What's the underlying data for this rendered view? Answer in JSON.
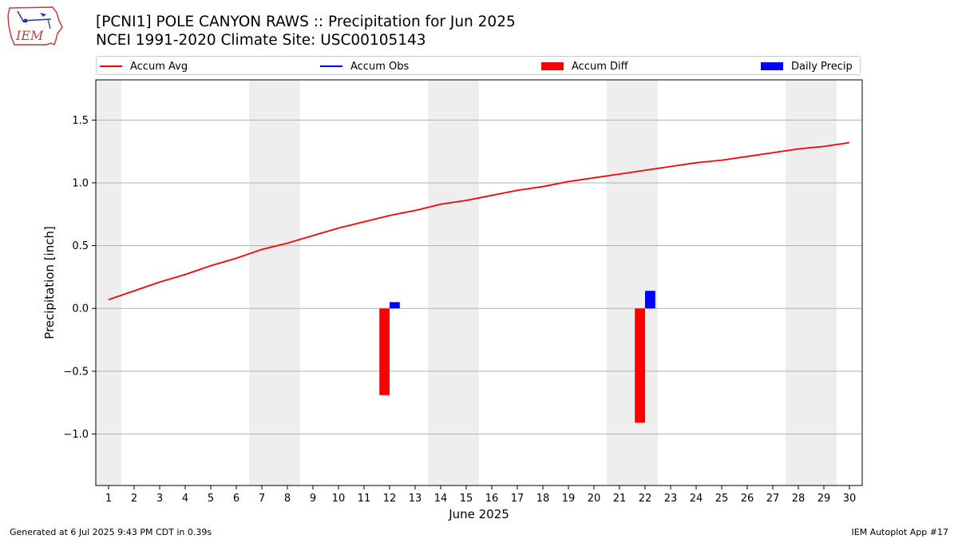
{
  "header": {
    "title_line1": "[PCNI1] POLE CANYON RAWS :: Precipitation for Jun 2025",
    "title_line2": "NCEI 1991-2020 Climate Site: USC00105143",
    "logo_text": "IEM"
  },
  "footer": {
    "left": "Generated at 6 Jul 2025 9:43 PM CDT in 0.39s",
    "right": "IEM Autoplot App #17"
  },
  "colors": {
    "avg": "#ff0000",
    "obs": "#0000ff",
    "diff": "#ff0000",
    "daily": "#0000ff",
    "weekend": "#eeeeee",
    "grid": "#b0b0b0"
  },
  "chart_data": {
    "type": "line",
    "title": "[PCNI1] POLE CANYON RAWS :: Precipitation for Jun 2025",
    "xlabel": "June 2025",
    "ylabel": "Precipitation [inch]",
    "xlim": [
      0.5,
      30.5
    ],
    "ylim": [
      -1.41,
      1.82
    ],
    "yticks": [
      -1.0,
      -0.5,
      0.0,
      0.5,
      1.0,
      1.5
    ],
    "ytick_labels": [
      "−1.0",
      "−0.5",
      "0.0",
      "0.5",
      "1.0",
      "1.5"
    ],
    "x": [
      1,
      2,
      3,
      4,
      5,
      6,
      7,
      8,
      9,
      10,
      11,
      12,
      13,
      14,
      15,
      16,
      17,
      18,
      19,
      20,
      21,
      22,
      23,
      24,
      25,
      26,
      27,
      28,
      29,
      30
    ],
    "x_tick_labels": [
      "1",
      "2",
      "3",
      "4",
      "5",
      "6",
      "7",
      "8",
      "9",
      "10",
      "11",
      "12",
      "13",
      "14",
      "15",
      "16",
      "17",
      "18",
      "19",
      "20",
      "21",
      "22",
      "23",
      "24",
      "25",
      "26",
      "27",
      "28",
      "29",
      "30"
    ],
    "grid": "horizontal",
    "legend": [
      {
        "label": "Accum Avg",
        "kind": "line",
        "color": "#ff0000"
      },
      {
        "label": "Accum Obs",
        "kind": "line",
        "color": "#0000ff"
      },
      {
        "label": "Accum Diff",
        "kind": "bar",
        "color": "#ff0000"
      },
      {
        "label": "Daily Precip",
        "kind": "bar",
        "color": "#0000ff"
      }
    ],
    "weekend_bands": [
      [
        0.5,
        1.5
      ],
      [
        6.5,
        8.5
      ],
      [
        13.5,
        15.5
      ],
      [
        20.5,
        22.5
      ],
      [
        27.5,
        29.5
      ]
    ],
    "series": [
      {
        "name": "Accum Avg",
        "values": [
          0.07,
          0.14,
          0.21,
          0.27,
          0.34,
          0.4,
          0.47,
          0.52,
          0.58,
          0.64,
          0.69,
          0.74,
          0.78,
          0.83,
          0.86,
          0.9,
          0.94,
          0.97,
          1.01,
          1.04,
          1.07,
          1.1,
          1.13,
          1.16,
          1.18,
          1.21,
          1.24,
          1.27,
          1.29,
          1.32
        ]
      },
      {
        "name": "Accum Diff",
        "bars": [
          {
            "x": 12,
            "value": -0.69
          },
          {
            "x": 22,
            "value": -0.91
          }
        ]
      },
      {
        "name": "Daily Precip",
        "bars": [
          {
            "x": 12,
            "value": 0.05
          },
          {
            "x": 22,
            "value": 0.14
          }
        ]
      }
    ]
  }
}
